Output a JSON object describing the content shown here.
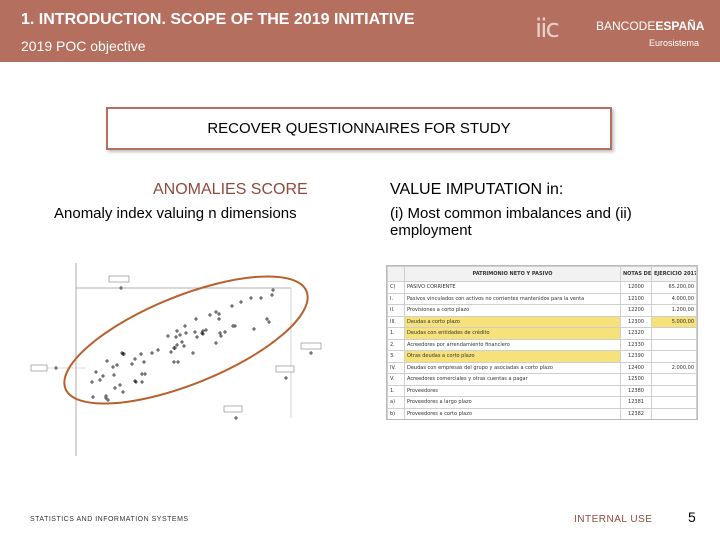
{
  "header": {
    "title": "1. INTRODUCTION. SCOPE OF THE 2019 INITIATIVE",
    "subtitle": "2019 POC objective",
    "logo_iic": "iic",
    "logo_bank_prefix": "BANCODE",
    "logo_bank_bold": "ESPAÑA",
    "logo_euro": "Eurosistema"
  },
  "recover_box": {
    "text": "RECOVER QUESTIONNAIRES FOR STUDY"
  },
  "anomalies": {
    "title": "ANOMALIES SCORE",
    "description": "Anomaly index valuing n dimensions"
  },
  "imputation": {
    "title": "VALUE IMPUTATION in:",
    "description": "(i) Most common imbalances and (ii) employment"
  },
  "colors": {
    "header_bg": "#b46f5f",
    "accent": "#8e4a3c",
    "ellipse": "#b8602e",
    "highlight": "#f7e17a"
  },
  "balance_sheet": {
    "col_header": "PATRIMONIO NETO Y PASIVO",
    "notes_header": "NOTAS DE LA MEMORIA",
    "year_header": "EJERCICIO 2017",
    "rows": [
      {
        "num": "C)",
        "label": "PASIVO CORRIENTE",
        "code": "12000",
        "value": "65.200,00",
        "highlight": false
      },
      {
        "num": "I.",
        "label": "Pasivos vinculados con activos no corrientes mantenidos para la venta",
        "code": "12100",
        "value": "4.000,00",
        "highlight": false
      },
      {
        "num": "II.",
        "label": "Provisiones a corto plazo",
        "code": "12200",
        "value": "1.200,00",
        "highlight": false
      },
      {
        "num": "III.",
        "label": "Deudas a corto plazo",
        "code": "12300",
        "value": "5.000,00",
        "highlight": true
      },
      {
        "num": "1.",
        "label": "Deudas con entidades de crédito",
        "code": "12320",
        "value": "",
        "highlight": true
      },
      {
        "num": "2.",
        "label": "Acreedores por arrendamiento financiero",
        "code": "12330",
        "value": "",
        "highlight": false
      },
      {
        "num": "3.",
        "label": "Otras deudas a corto plazo",
        "code": "12390",
        "value": "",
        "highlight": true
      },
      {
        "num": "IV.",
        "label": "Deudas con empresas del grupo y asociadas a corto plazo",
        "code": "12400",
        "value": "2.000,00",
        "highlight": false
      },
      {
        "num": "V.",
        "label": "Acreedores comerciales y otras cuentas a pagar",
        "code": "12500",
        "value": "",
        "highlight": false
      },
      {
        "num": "1.",
        "label": "Proveedores",
        "code": "12380",
        "value": "",
        "highlight": false
      },
      {
        "num": "a)",
        "label": "Proveedores a largo plazo",
        "code": "12381",
        "value": "",
        "highlight": false
      },
      {
        "num": "b)",
        "label": "Proveedores a corto plazo",
        "code": "12382",
        "value": "",
        "highlight": false
      }
    ]
  },
  "footer": {
    "left": "STATISTICS AND INFORMATION SYSTEMS",
    "mid": "INTERNAL USE",
    "page": "5"
  }
}
